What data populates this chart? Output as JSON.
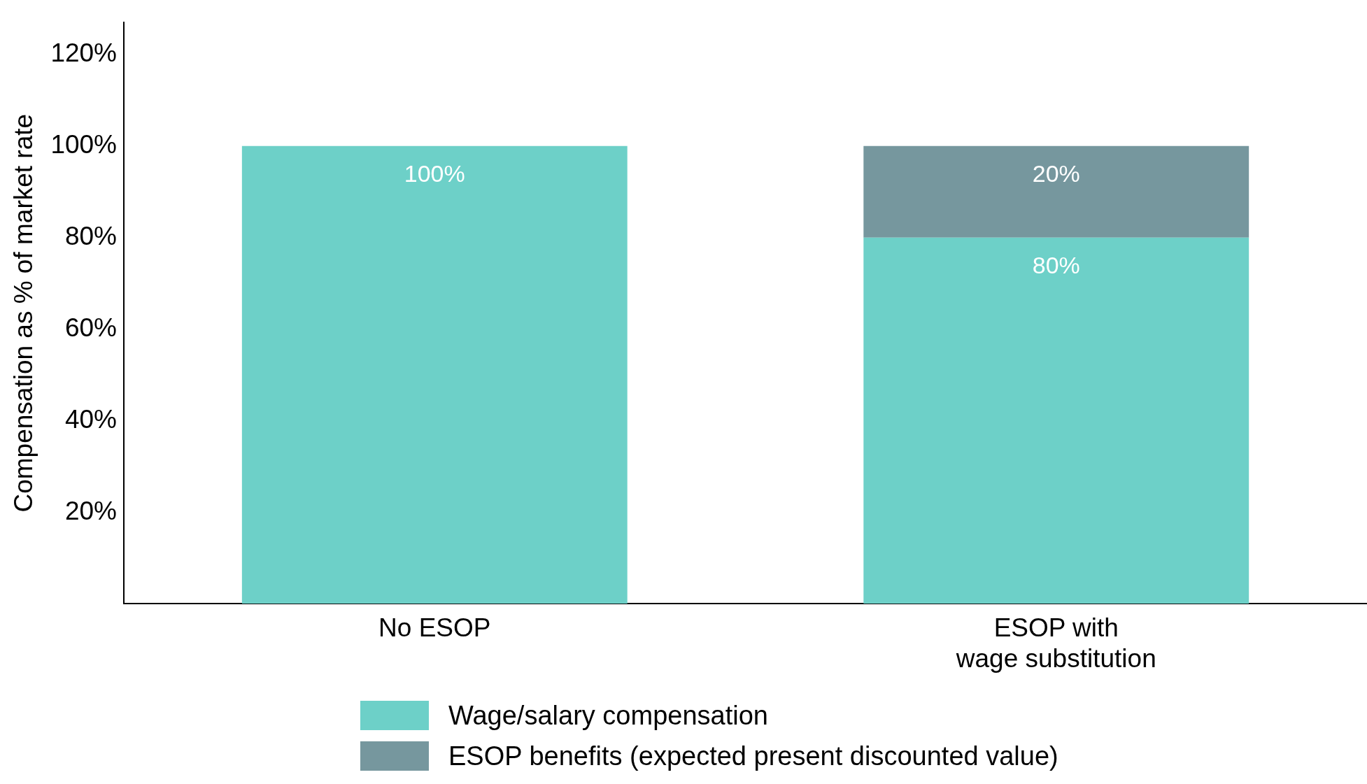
{
  "chart_data": {
    "type": "bar",
    "ylabel": "Compensation as % of market rate",
    "categories": [
      "No ESOP",
      "ESOP with\nwage substitution"
    ],
    "stacked": true,
    "series": [
      {
        "name": "Wage/salary compensation",
        "color": "#6dd0c8",
        "values": [
          100,
          80
        ],
        "value_labels": [
          "100%",
          "80%"
        ]
      },
      {
        "name": "ESOP benefits (expected present discounted value)",
        "color": "#76979e",
        "values": [
          null,
          20
        ],
        "value_labels": [
          null,
          "20%"
        ]
      }
    ],
    "ylim": [
      0,
      127
    ],
    "yticks": [
      {
        "value": 20,
        "label": "20%"
      },
      {
        "value": 40,
        "label": "40%"
      },
      {
        "value": 60,
        "label": "60%"
      },
      {
        "value": 80,
        "label": "80%"
      },
      {
        "value": 100,
        "label": "100%"
      },
      {
        "value": 120,
        "label": "120%"
      }
    ],
    "grid": false,
    "legend": "bottom"
  }
}
